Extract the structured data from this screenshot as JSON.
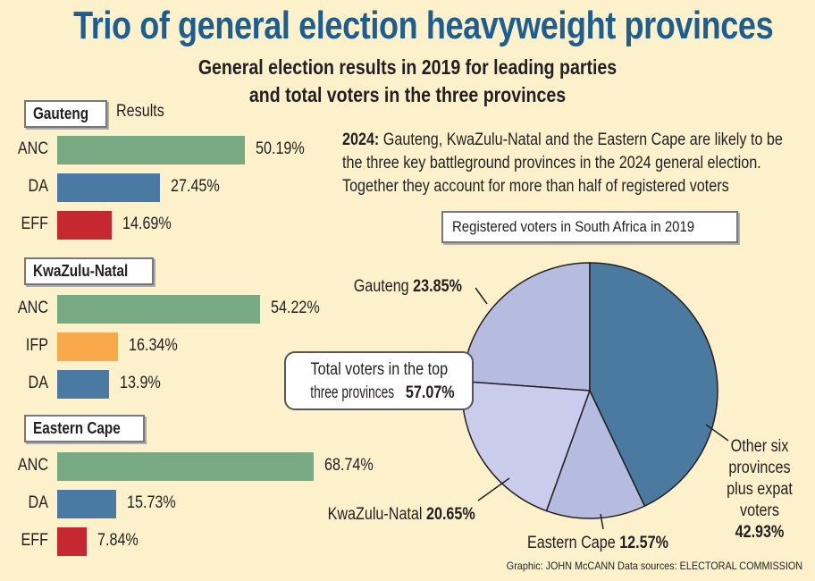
{
  "chart_data": {
    "type": "bar",
    "title": "Trio of general election heavyweight provinces",
    "subtitle": [
      "General election results in 2019 for leading parties",
      "and total voters in the three provinces"
    ],
    "results_label": "Results",
    "provinces": [
      {
        "name": "Gauteng",
        "parties": [
          {
            "party": "ANC",
            "value": 50.19,
            "label": "50.19%",
            "color": "#77a983"
          },
          {
            "party": "DA",
            "value": 27.45,
            "label": "27.45%",
            "color": "#4a7aa4"
          },
          {
            "party": "EFF",
            "value": 14.69,
            "label": "14.69%",
            "color": "#c5282f"
          }
        ]
      },
      {
        "name": "KwaZulu-Natal",
        "parties": [
          {
            "party": "ANC",
            "value": 54.22,
            "label": "54.22%",
            "color": "#77a983"
          },
          {
            "party": "IFP",
            "value": 16.34,
            "label": "16.34%",
            "color": "#f9a94a"
          },
          {
            "party": "DA",
            "value": 13.9,
            "label": "13.9%",
            "color": "#4a7aa4"
          }
        ]
      },
      {
        "name": "Eastern Cape",
        "parties": [
          {
            "party": "ANC",
            "value": 68.74,
            "label": "68.74%",
            "color": "#77a983"
          },
          {
            "party": "DA",
            "value": 15.73,
            "label": "15.73%",
            "color": "#4a7aa4"
          },
          {
            "party": "EFF",
            "value": 7.84,
            "label": "7.84%",
            "color": "#c5282f"
          }
        ]
      }
    ],
    "note_bold": "2024:",
    "note_lines": [
      " Gauteng, KwaZulu-Natal and the Eastern Cape are likely to be",
      "the three key battleground provinces in the 2024 general election.",
      "Together they account for more than half of registered voters"
    ],
    "pie": {
      "type": "pie",
      "title": "Registered voters in South Africa in 2019",
      "slices": [
        {
          "name": "Other six provinces plus expat voters",
          "value": 42.93,
          "color": "#4a7aa0"
        },
        {
          "name": "Eastern Cape",
          "value": 12.57,
          "color": "#b6bbe0"
        },
        {
          "name": "KwaZulu-Natal",
          "value": 20.65,
          "color": "#c9cdeb"
        },
        {
          "name": "Gauteng",
          "value": 23.85,
          "color": "#b6bbe0"
        }
      ],
      "labels": {
        "gauteng": {
          "name": "Gauteng",
          "pct": "23.85%"
        },
        "kzn": {
          "name": "KwaZulu-Natal",
          "pct": "20.65%"
        },
        "ec": {
          "name": "Eastern Cape",
          "pct": "12.57%"
        },
        "other": {
          "lines": [
            "Other six",
            "provinces",
            "plus expat",
            "voters"
          ],
          "pct": "42.93%"
        }
      },
      "callout": {
        "line1": "Total voters in the top",
        "line2": "three provinces",
        "pct": "57.07%"
      }
    },
    "credit": "Graphic: JOHN McCANN  Data sources: ELECTORAL COMMISSION"
  }
}
